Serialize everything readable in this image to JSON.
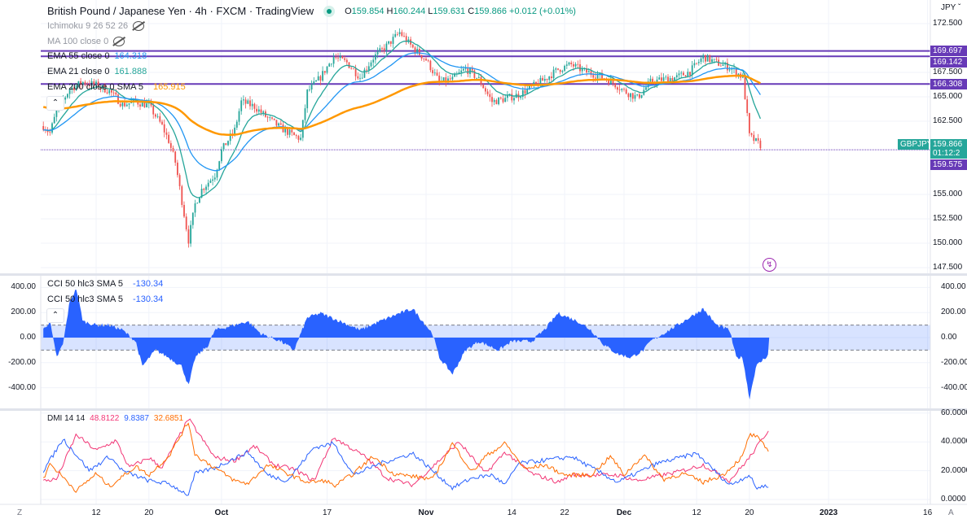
{
  "header": {
    "title": "British Pound / Japanese Yen · 4h · FXCM · TradingView",
    "status_color": "#089981",
    "ohlc": {
      "o_label": "O",
      "o": "159.854",
      "h_label": "H",
      "h": "160.244",
      "l_label": "L",
      "l": "159.631",
      "c_label": "C",
      "c": "159.866",
      "change": "+0.012 (+0.01%)"
    }
  },
  "indicators": [
    {
      "label": "Ichimoku 9 26 52 26",
      "hidden": true
    },
    {
      "label": "MA 100 close 0",
      "hidden": true
    },
    {
      "label": "EMA 55 close 0",
      "value": "164.318",
      "color": "#2196f3"
    },
    {
      "label": "EMA 21 close 0",
      "value": "161.888",
      "color": "#26a69a"
    },
    {
      "label": "EMA 200 close 0 SMA 5",
      "value": "165.915",
      "color": "#ff9800"
    }
  ],
  "price_axis": {
    "currency": "JPY",
    "ticks": [
      "172.500",
      "167.500",
      "165.000",
      "162.500",
      "155.000",
      "152.500",
      "150.000",
      "147.500"
    ],
    "levels": [
      {
        "value": 169.697,
        "label": "169.697"
      },
      {
        "value": 169.142,
        "label": "169.142"
      },
      {
        "value": 166.308,
        "label": "166.308"
      },
      {
        "value": 159.575,
        "label": "159.575"
      }
    ],
    "level_color": "#673ab7",
    "symbol_tag": "GBPJPY",
    "last_price": "159.866",
    "countdown": "01:12:2",
    "last_color": "#26a69a"
  },
  "cci_pane": {
    "legend": [
      {
        "label": "CCI 50 hlc3 SMA 5",
        "value": "-130.34"
      },
      {
        "label": "CCI 50 hlc3 SMA 5",
        "value": "-130.34"
      }
    ],
    "ticks": [
      "400.00",
      "200.00",
      "0.00",
      "-200.00",
      "-400.00"
    ]
  },
  "dmi_pane": {
    "legend": "DMI 14 14",
    "values": [
      {
        "value": "48.8122",
        "color": "#f23676"
      },
      {
        "value": "9.8387",
        "color": "#2962ff"
      },
      {
        "value": "32.6851",
        "color": "#ff6d00"
      }
    ],
    "ticks": [
      "60.0000",
      "40.0000",
      "20.0000",
      "0.0000"
    ]
  },
  "time_axis": {
    "ticks": [
      {
        "label": "12",
        "date": "2022-09-12"
      },
      {
        "label": "20",
        "date": "2022-09-20"
      },
      {
        "label": "Oct",
        "date": "2022-10-01"
      },
      {
        "label": "17",
        "date": "2022-10-17"
      },
      {
        "label": "Nov",
        "date": "2022-11-01"
      },
      {
        "label": "14",
        "date": "2022-11-14"
      },
      {
        "label": "22",
        "date": "2022-11-22"
      },
      {
        "label": "Dec",
        "date": "2022-12-01"
      },
      {
        "label": "12",
        "date": "2022-12-12"
      },
      {
        "label": "20",
        "date": "2022-12-20"
      },
      {
        "label": "2023",
        "date": "2023-01-01"
      },
      {
        "label": "16",
        "date": "2023-01-16"
      }
    ],
    "left_button": "Z",
    "right_button": "A"
  },
  "chart_data": [
    {
      "type": "candlestick",
      "title": "British Pound / Japanese Yen · 4h · FXCM",
      "ylim": [
        146,
        174
      ],
      "grid": true,
      "up_color": "#26a69a",
      "down_color": "#ef5350",
      "close": [
        [
          "2022-09-04",
          162.0
        ],
        [
          "2022-09-05",
          161.3
        ],
        [
          "2022-09-06",
          163.5
        ],
        [
          "2022-09-08",
          165.8
        ],
        [
          "2022-09-10",
          166.5
        ],
        [
          "2022-09-12",
          166.2
        ],
        [
          "2022-09-14",
          165.6
        ],
        [
          "2022-09-16",
          164.2
        ],
        [
          "2022-09-18",
          164.5
        ],
        [
          "2022-09-20",
          164.1
        ],
        [
          "2022-09-22",
          162.0
        ],
        [
          "2022-09-23",
          160.5
        ],
        [
          "2022-09-24",
          158.3
        ],
        [
          "2022-09-26",
          150.3
        ],
        [
          "2022-09-27",
          154.0
        ],
        [
          "2022-09-28",
          155.5
        ],
        [
          "2022-09-30",
          157.0
        ],
        [
          "2022-10-01",
          159.5
        ],
        [
          "2022-10-03",
          161.6
        ],
        [
          "2022-10-04",
          164.5
        ],
        [
          "2022-10-06",
          164.0
        ],
        [
          "2022-10-08",
          162.8
        ],
        [
          "2022-10-10",
          161.8
        ],
        [
          "2022-10-12",
          161.0
        ],
        [
          "2022-10-13",
          160.7
        ],
        [
          "2022-10-14",
          165.5
        ],
        [
          "2022-10-16",
          167.0
        ],
        [
          "2022-10-18",
          169.1
        ],
        [
          "2022-10-20",
          168.5
        ],
        [
          "2022-10-22",
          167.0
        ],
        [
          "2022-10-24",
          169.0
        ],
        [
          "2022-10-26",
          170.2
        ],
        [
          "2022-10-28",
          171.6
        ],
        [
          "2022-10-30",
          170.0
        ],
        [
          "2022-11-01",
          168.8
        ],
        [
          "2022-11-03",
          166.5
        ],
        [
          "2022-11-05",
          166.8
        ],
        [
          "2022-11-07",
          167.9
        ],
        [
          "2022-11-09",
          166.8
        ],
        [
          "2022-11-11",
          164.5
        ],
        [
          "2022-11-13",
          164.8
        ],
        [
          "2022-11-15",
          165.2
        ],
        [
          "2022-11-17",
          166.0
        ],
        [
          "2022-11-19",
          166.8
        ],
        [
          "2022-11-21",
          167.8
        ],
        [
          "2022-11-23",
          168.3
        ],
        [
          "2022-11-25",
          167.6
        ],
        [
          "2022-11-27",
          167.2
        ],
        [
          "2022-11-29",
          166.6
        ],
        [
          "2022-12-01",
          165.6
        ],
        [
          "2022-12-03",
          164.9
        ],
        [
          "2022-12-05",
          166.5
        ],
        [
          "2022-12-07",
          166.8
        ],
        [
          "2022-12-09",
          167.0
        ],
        [
          "2022-12-11",
          167.6
        ],
        [
          "2022-12-13",
          169.1
        ],
        [
          "2022-12-15",
          168.5
        ],
        [
          "2022-12-17",
          168.0
        ],
        [
          "2022-12-19",
          167.0
        ],
        [
          "2022-12-20",
          161.0
        ],
        [
          "2022-12-21",
          160.4
        ],
        [
          "2022-12-22",
          159.87
        ]
      ]
    },
    {
      "type": "area",
      "series_label": "CCI 50 hlc3 SMA 5",
      "ylim": [
        -500,
        450
      ],
      "band": [
        -100,
        100
      ],
      "color": "#2962ff",
      "points": [
        [
          "2022-09-04",
          65
        ],
        [
          "2022-09-05",
          130
        ],
        [
          "2022-09-06",
          -160
        ],
        [
          "2022-09-07",
          -50
        ],
        [
          "2022-09-08",
          290
        ],
        [
          "2022-09-09",
          390
        ],
        [
          "2022-09-10",
          130
        ],
        [
          "2022-09-12",
          100
        ],
        [
          "2022-09-14",
          100
        ],
        [
          "2022-09-16",
          60
        ],
        [
          "2022-09-18",
          -30
        ],
        [
          "2022-09-19",
          -230
        ],
        [
          "2022-09-21",
          -100
        ],
        [
          "2022-09-23",
          -160
        ],
        [
          "2022-09-25",
          -230
        ],
        [
          "2022-09-26",
          -390
        ],
        [
          "2022-09-27",
          -160
        ],
        [
          "2022-09-29",
          -60
        ],
        [
          "2022-09-30",
          60
        ],
        [
          "2022-10-03",
          100
        ],
        [
          "2022-10-05",
          130
        ],
        [
          "2022-10-07",
          30
        ],
        [
          "2022-10-10",
          -30
        ],
        [
          "2022-10-12",
          -100
        ],
        [
          "2022-10-14",
          160
        ],
        [
          "2022-10-16",
          195
        ],
        [
          "2022-10-19",
          130
        ],
        [
          "2022-10-22",
          60
        ],
        [
          "2022-10-25",
          130
        ],
        [
          "2022-10-28",
          195
        ],
        [
          "2022-10-30",
          230
        ],
        [
          "2022-11-02",
          30
        ],
        [
          "2022-11-03",
          -160
        ],
        [
          "2022-11-05",
          -290
        ],
        [
          "2022-11-07",
          -100
        ],
        [
          "2022-11-09",
          -30
        ],
        [
          "2022-11-12",
          -100
        ],
        [
          "2022-11-14",
          -30
        ],
        [
          "2022-11-17",
          -30
        ],
        [
          "2022-11-19",
          65
        ],
        [
          "2022-11-21",
          195
        ],
        [
          "2022-11-24",
          130
        ],
        [
          "2022-11-26",
          60
        ],
        [
          "2022-11-28",
          -60
        ],
        [
          "2022-11-30",
          -130
        ],
        [
          "2022-12-02",
          -160
        ],
        [
          "2022-12-04",
          -100
        ],
        [
          "2022-12-05",
          -30
        ],
        [
          "2022-12-08",
          65
        ],
        [
          "2022-12-10",
          130
        ],
        [
          "2022-12-13",
          230
        ],
        [
          "2022-12-15",
          100
        ],
        [
          "2022-12-17",
          60
        ],
        [
          "2022-12-18",
          -160
        ],
        [
          "2022-12-19",
          -160
        ],
        [
          "2022-12-20",
          -490
        ],
        [
          "2022-12-21",
          -230
        ],
        [
          "2022-12-23",
          -130
        ]
      ]
    },
    {
      "type": "line",
      "series_label": "DMI 14 14",
      "ylim": [
        0,
        60
      ],
      "series": [
        {
          "color": "#f23676",
          "points": [
            [
              "2022-09-04",
              13
            ],
            [
              "2022-09-06",
              14
            ],
            [
              "2022-09-09",
              45
            ],
            [
              "2022-09-12",
              34
            ],
            [
              "2022-09-15",
              41
            ],
            [
              "2022-09-17",
              22
            ],
            [
              "2022-09-20",
              29
            ],
            [
              "2022-09-22",
              22
            ],
            [
              "2022-09-26",
              56
            ],
            [
              "2022-09-30",
              29
            ],
            [
              "2022-10-03",
              27
            ],
            [
              "2022-10-06",
              37
            ],
            [
              "2022-10-09",
              24
            ],
            [
              "2022-10-12",
              21
            ],
            [
              "2022-10-15",
              13
            ],
            [
              "2022-10-18",
              43
            ],
            [
              "2022-10-23",
              29
            ],
            [
              "2022-10-26",
              15
            ],
            [
              "2022-10-30",
              10
            ],
            [
              "2022-11-06",
              40
            ],
            [
              "2022-11-10",
              18
            ],
            [
              "2022-11-13",
              33
            ],
            [
              "2022-11-17",
              18
            ],
            [
              "2022-11-21",
              12
            ],
            [
              "2022-11-23",
              17
            ],
            [
              "2022-11-30",
              17
            ],
            [
              "2022-12-03",
              13
            ],
            [
              "2022-12-09",
              19
            ],
            [
              "2022-12-13",
              24
            ],
            [
              "2022-12-17",
              13
            ],
            [
              "2022-12-20",
              29
            ],
            [
              "2022-12-23",
              49
            ]
          ]
        },
        {
          "color": "#2962ff",
          "points": [
            [
              "2022-09-04",
              20
            ],
            [
              "2022-09-07",
              42
            ],
            [
              "2022-09-11",
              20
            ],
            [
              "2022-09-14",
              30
            ],
            [
              "2022-09-16",
              20
            ],
            [
              "2022-09-20",
              13
            ],
            [
              "2022-09-23",
              11
            ],
            [
              "2022-09-26",
              3
            ],
            [
              "2022-09-27",
              18
            ],
            [
              "2022-09-30",
              22
            ],
            [
              "2022-10-05",
              33
            ],
            [
              "2022-10-08",
              17
            ],
            [
              "2022-10-11",
              13
            ],
            [
              "2022-10-15",
              36
            ],
            [
              "2022-10-18",
              39
            ],
            [
              "2022-10-21",
              17
            ],
            [
              "2022-10-25",
              25
            ],
            [
              "2022-10-30",
              32
            ],
            [
              "2022-11-05",
              8
            ],
            [
              "2022-11-08",
              15
            ],
            [
              "2022-11-11",
              17
            ],
            [
              "2022-11-13",
              10
            ],
            [
              "2022-11-15",
              25
            ],
            [
              "2022-11-22",
              29
            ],
            [
              "2022-11-23",
              30
            ],
            [
              "2022-11-30",
              12
            ],
            [
              "2022-12-06",
              25
            ],
            [
              "2022-12-12",
              32
            ],
            [
              "2022-12-17",
              10
            ],
            [
              "2022-12-20",
              17
            ],
            [
              "2022-12-21",
              8
            ],
            [
              "2022-12-23",
              10
            ]
          ]
        },
        {
          "color": "#ff6d00",
          "points": [
            [
              "2022-09-04",
              14
            ],
            [
              "2022-09-05",
              25
            ],
            [
              "2022-09-09",
              6
            ],
            [
              "2022-09-12",
              18
            ],
            [
              "2022-09-14",
              9
            ],
            [
              "2022-09-18",
              23
            ],
            [
              "2022-09-20",
              17
            ],
            [
              "2022-09-23",
              30
            ],
            [
              "2022-09-26",
              54
            ],
            [
              "2022-09-27",
              31
            ],
            [
              "2022-09-30",
              22
            ],
            [
              "2022-10-03",
              13
            ],
            [
              "2022-10-05",
              11
            ],
            [
              "2022-10-08",
              24
            ],
            [
              "2022-10-14",
              12
            ],
            [
              "2022-10-17",
              13
            ],
            [
              "2022-10-18",
              9
            ],
            [
              "2022-10-21",
              18
            ],
            [
              "2022-10-24",
              30
            ],
            [
              "2022-10-27",
              18
            ],
            [
              "2022-10-30",
              16
            ],
            [
              "2022-11-02",
              14
            ],
            [
              "2022-11-05",
              39
            ],
            [
              "2022-11-08",
              19
            ],
            [
              "2022-11-10",
              30
            ],
            [
              "2022-11-13",
              39
            ],
            [
              "2022-11-16",
              21
            ],
            [
              "2022-11-19",
              24
            ],
            [
              "2022-11-22",
              17
            ],
            [
              "2022-11-26",
              17
            ],
            [
              "2022-11-29",
              30
            ],
            [
              "2022-12-01",
              17
            ],
            [
              "2022-12-04",
              31
            ],
            [
              "2022-12-07",
              14
            ],
            [
              "2022-12-10",
              18
            ],
            [
              "2022-12-13",
              12
            ],
            [
              "2022-12-16",
              17
            ],
            [
              "2022-12-19",
              30
            ],
            [
              "2022-12-20",
              45
            ],
            [
              "2022-12-21",
              44
            ],
            [
              "2022-12-23",
              33
            ]
          ]
        }
      ]
    }
  ]
}
